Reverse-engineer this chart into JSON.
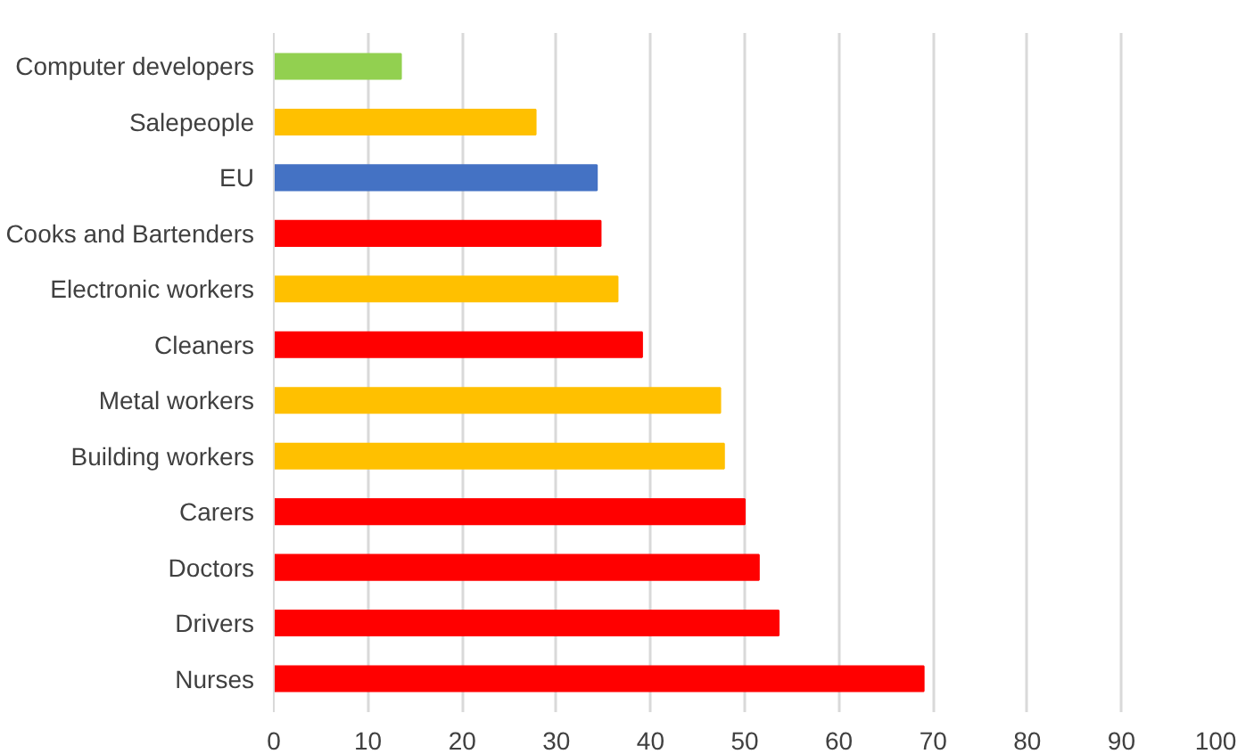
{
  "chart_data": {
    "type": "bar",
    "orientation": "horizontal",
    "categories": [
      "Computer developers",
      "Salepeople",
      "EU",
      "Cooks and Bartenders",
      "Electronic workers",
      "Cleaners",
      "Metal workers",
      "Building workers",
      "Carers",
      "Doctors",
      "Drivers",
      "Nurses"
    ],
    "values": [
      13.5,
      27.8,
      34.3,
      34.7,
      36.5,
      39.1,
      47.4,
      47.8,
      50,
      51.5,
      53.6,
      69
    ],
    "colors": [
      "#92d050",
      "#ffc000",
      "#4472c4",
      "#ff0000",
      "#ffc000",
      "#ff0000",
      "#ffc000",
      "#ffc000",
      "#ff0000",
      "#ff0000",
      "#ff0000",
      "#ff0000"
    ],
    "xlim": [
      0,
      100
    ],
    "xticks": [
      0,
      10,
      20,
      30,
      40,
      50,
      60,
      70,
      80,
      90,
      100
    ],
    "grid": "x"
  }
}
